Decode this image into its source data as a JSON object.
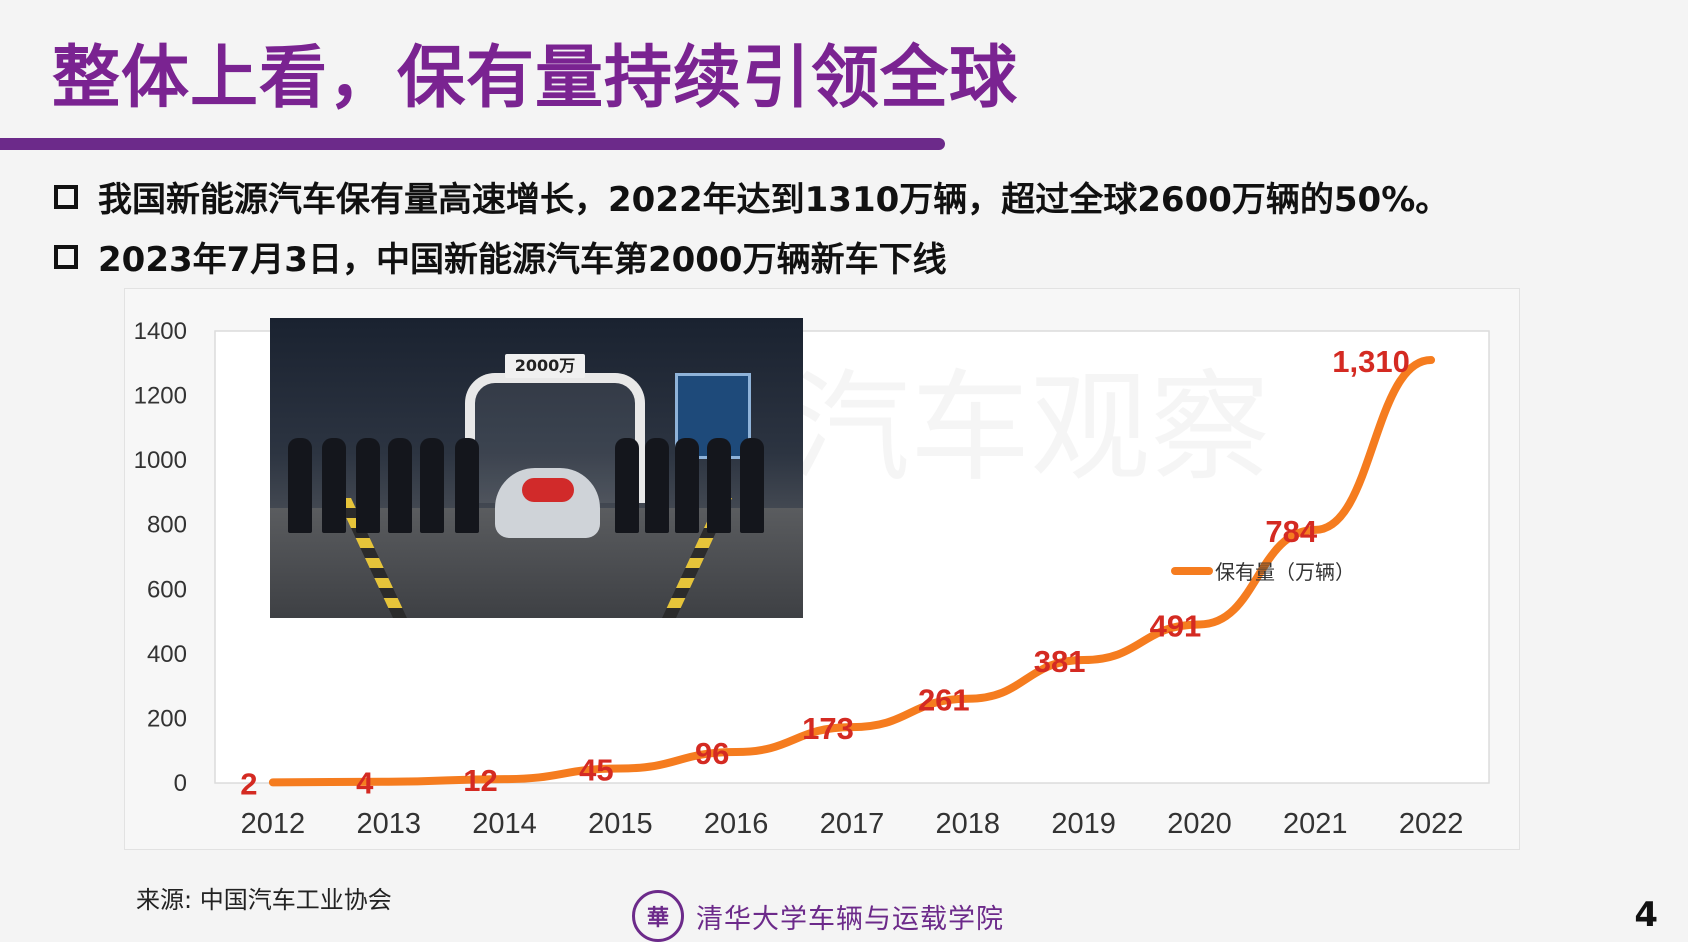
{
  "slide": {
    "title": "整体上看，保有量持续引领全球",
    "bullets": [
      "我国新能源汽车保有量高速增长，2022年达到1310万辆，超过全球2600万辆的50%。",
      "2023年7月3日，中国新能源汽车第2000万辆新车下线"
    ],
    "source": "来源: 中国汽车工业协会",
    "institution": "清华大学车辆与运载学院",
    "page_number": "4",
    "watermark": "汽车观察",
    "logo_glyph": "華",
    "photo_caption": "2000万"
  },
  "chart_data": {
    "type": "line",
    "categories": [
      "2012",
      "2013",
      "2014",
      "2015",
      "2016",
      "2017",
      "2018",
      "2019",
      "2020",
      "2021",
      "2022"
    ],
    "series": [
      {
        "name": "保有量（万辆）",
        "values": [
          2,
          4,
          12,
          45,
          96,
          173,
          261,
          381,
          491,
          784,
          1310
        ],
        "labels": [
          "2",
          "4",
          "12",
          "45",
          "96",
          "173",
          "261",
          "381",
          "491",
          "784",
          "1,310"
        ],
        "color": "#f57c1f",
        "label_color": "#d42a22"
      }
    ],
    "yticks": [
      "0",
      "200",
      "400",
      "600",
      "800",
      "1000",
      "1200",
      "1400"
    ],
    "ylim": [
      0,
      1400
    ],
    "grid": false,
    "legend_position": "inside-right"
  }
}
